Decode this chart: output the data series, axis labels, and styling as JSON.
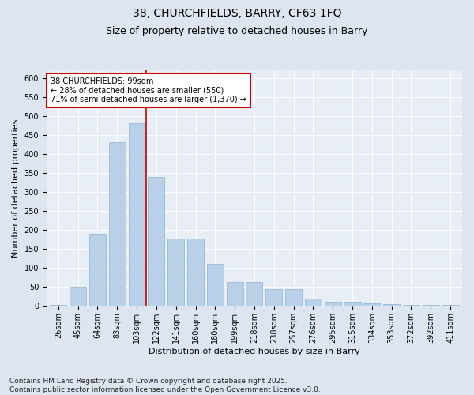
{
  "title1": "38, CHURCHFIELDS, BARRY, CF63 1FQ",
  "title2": "Size of property relative to detached houses in Barry",
  "xlabel": "Distribution of detached houses by size in Barry",
  "ylabel": "Number of detached properties",
  "categories": [
    "26sqm",
    "45sqm",
    "64sqm",
    "83sqm",
    "103sqm",
    "122sqm",
    "141sqm",
    "160sqm",
    "180sqm",
    "199sqm",
    "218sqm",
    "238sqm",
    "257sqm",
    "276sqm",
    "295sqm",
    "315sqm",
    "334sqm",
    "353sqm",
    "372sqm",
    "392sqm",
    "411sqm"
  ],
  "values": [
    3,
    50,
    190,
    430,
    480,
    340,
    178,
    178,
    110,
    62,
    62,
    45,
    45,
    20,
    12,
    12,
    6,
    4,
    3,
    2,
    3
  ],
  "bar_color": "#b8d0e8",
  "bar_edge_color": "#9ab8d8",
  "vline_x": 4.5,
  "vline_color": "#cc0000",
  "annotation_text": "38 CHURCHFIELDS: 99sqm\n← 28% of detached houses are smaller (550)\n71% of semi-detached houses are larger (1,370) →",
  "annotation_box_color": "#ffffff",
  "annotation_box_edge": "#cc0000",
  "bg_color": "#dde6f0",
  "plot_bg_color": "#e8eef6",
  "grid_color": "#ffffff",
  "footer": "Contains HM Land Registry data © Crown copyright and database right 2025.\nContains public sector information licensed under the Open Government Licence v3.0.",
  "ylim": [
    0,
    620
  ],
  "yticks": [
    0,
    50,
    100,
    150,
    200,
    250,
    300,
    350,
    400,
    450,
    500,
    550,
    600
  ],
  "title_fontsize": 10,
  "subtitle_fontsize": 9,
  "axis_label_fontsize": 8,
  "tick_fontsize": 7,
  "annotation_fontsize": 7,
  "footer_fontsize": 6.5
}
